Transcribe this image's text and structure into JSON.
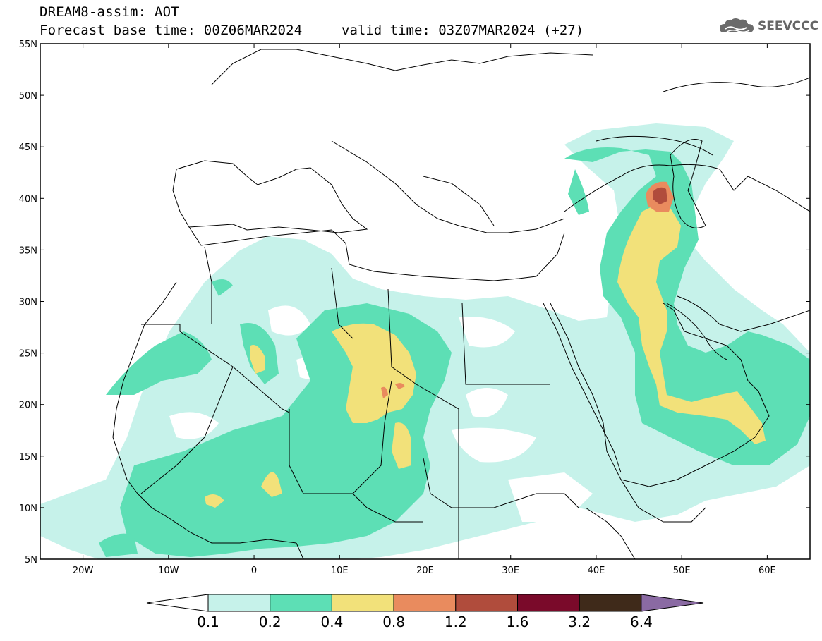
{
  "header": {
    "title": "DREAM8-assim: AOT",
    "base_time": "Forecast base time: 00Z06MAR2024",
    "valid_time": "valid time: 03Z07MAR2024 (+27)"
  },
  "logo": {
    "text": "SEEVCCC",
    "icon": "cloud-icon"
  },
  "axes": {
    "lat_labels": [
      "55N",
      "50N",
      "45N",
      "40N",
      "35N",
      "30N",
      "25N",
      "20N",
      "15N",
      "10N",
      "5N"
    ],
    "lon_labels": [
      "20W",
      "10W",
      "0",
      "10E",
      "20E",
      "30E",
      "40E",
      "50E",
      "60E"
    ]
  },
  "colorbar": {
    "levels": [
      "0.1",
      "0.2",
      "0.4",
      "0.8",
      "1.2",
      "1.6",
      "3.2",
      "6.4"
    ],
    "colors": [
      "#ffffff",
      "#c6f2ea",
      "#5ddfb5",
      "#f2e17a",
      "#e98b5e",
      "#b04c3c",
      "#7a0a2a",
      "#3f2a1a",
      "#8a6aa3"
    ]
  }
}
